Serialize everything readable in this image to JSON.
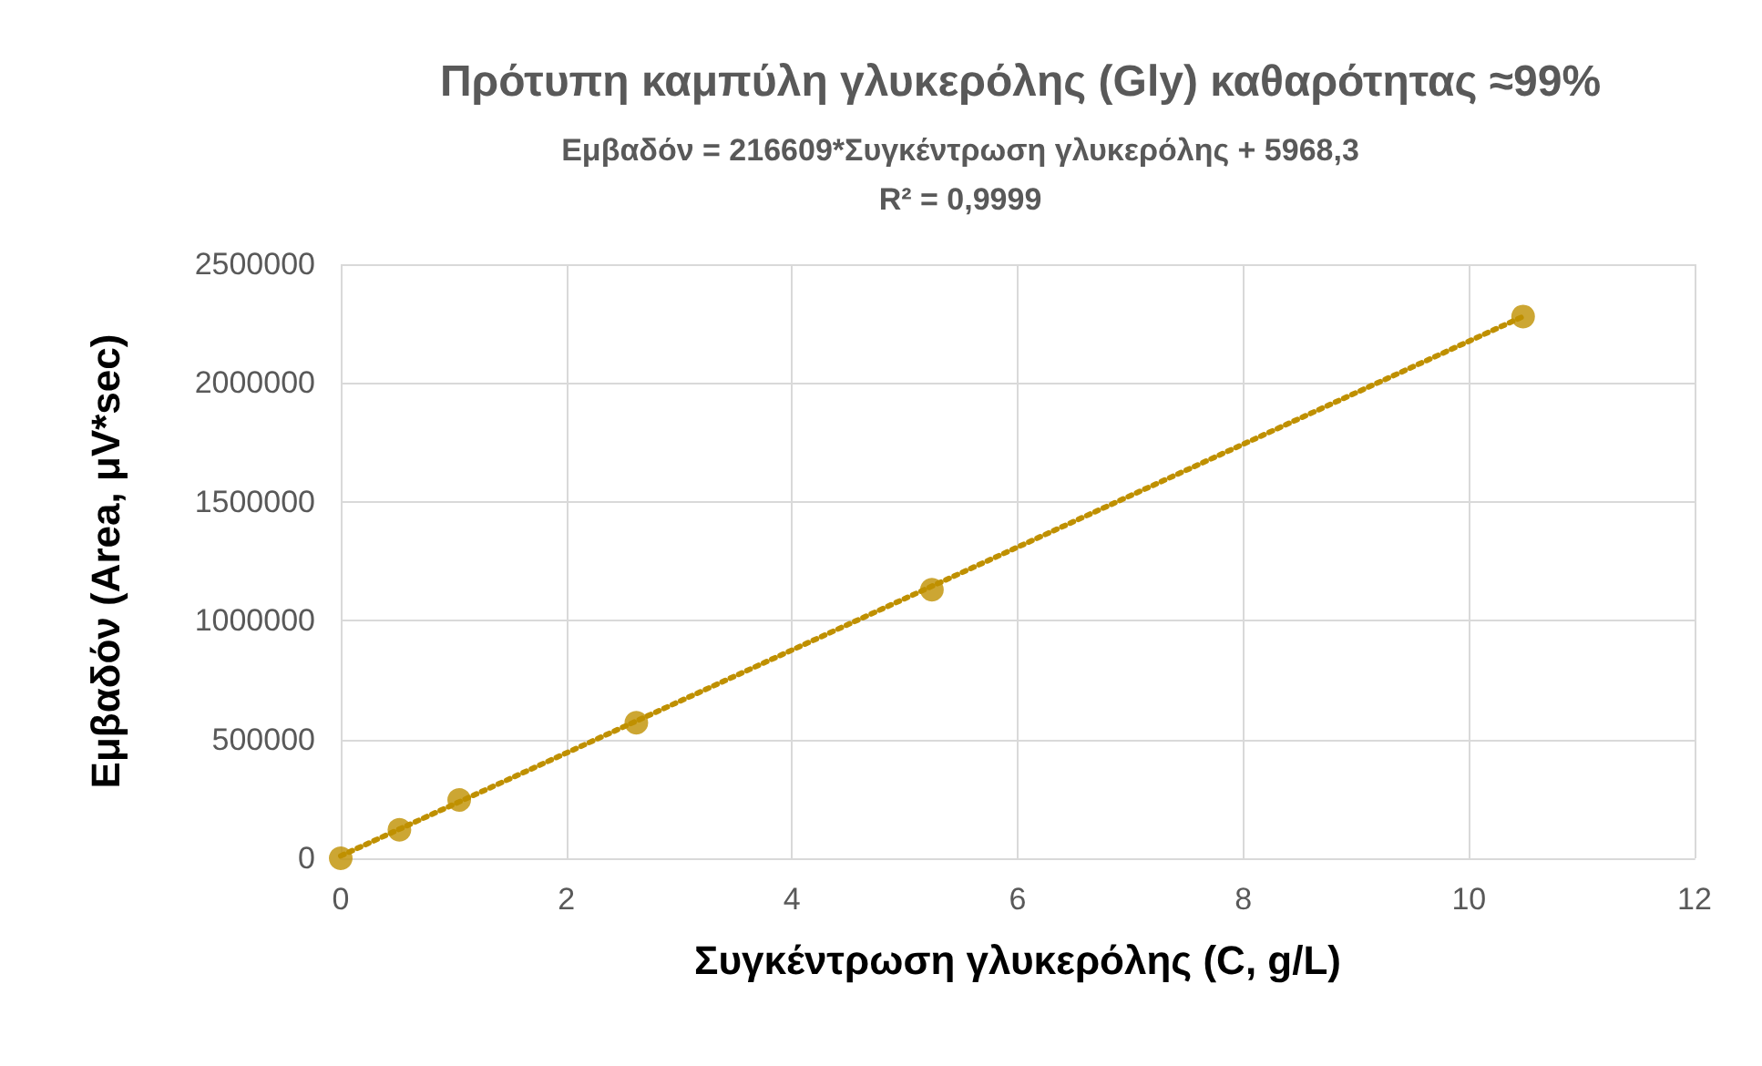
{
  "chart_data": {
    "type": "scatter",
    "title": "Πρότυπη καμπύλη γλυκερόλης (Gly) καθαρότητας ≈99%",
    "xlabel": "Συγκέντρωση γλυκερόλης (C, g/L)",
    "ylabel": "Εμβαδόν (Area, μV*sec)",
    "annotations": [
      "Εμβαδόν = 216609*Συγκέντρωση γλυκερόλης + 5968,3",
      "R² = 0,9999"
    ],
    "x": [
      0,
      0.52,
      1.05,
      2.62,
      5.24,
      10.48
    ],
    "series": [
      {
        "color": "#bf9000",
        "values": [
          0,
          120000,
          245000,
          570000,
          1130000,
          2280000
        ],
        "marker": "circle"
      },
      {
        "type": "line",
        "color": "#bf9000",
        "x": [
          0,
          10.48
        ],
        "values": [
          10000,
          2280000
        ],
        "marker": "none",
        "line_style": "dotted"
      }
    ],
    "xlim": [
      0,
      12
    ],
    "xticks": [
      0,
      2,
      4,
      6,
      8,
      10,
      12
    ],
    "ylim": [
      0,
      2500000
    ],
    "yticks": [
      0,
      500000,
      1000000,
      1500000,
      2000000,
      2500000
    ],
    "grid": true
  }
}
